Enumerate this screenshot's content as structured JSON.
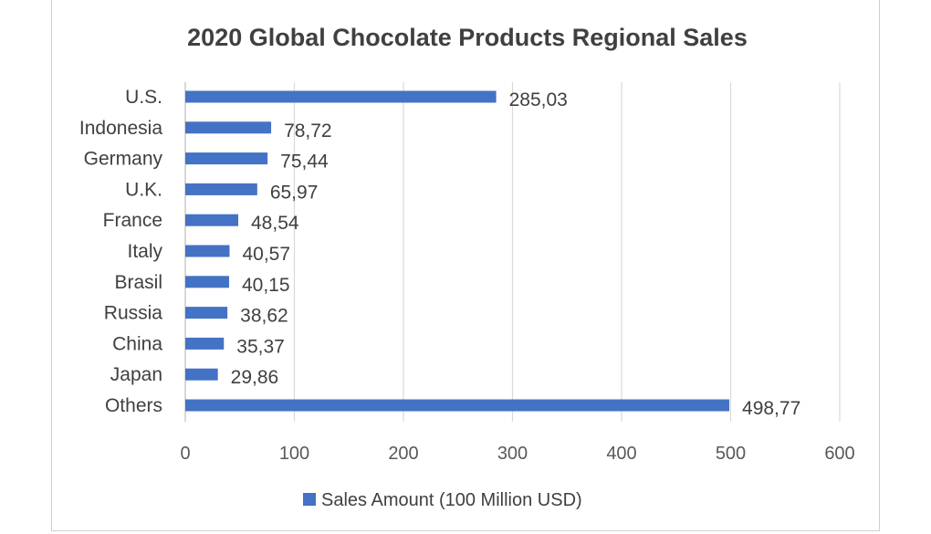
{
  "chart_data": {
    "type": "bar",
    "orientation": "horizontal",
    "title": "2020 Global Chocolate Products Regional Sales",
    "categories": [
      "U.S.",
      "Indonesia",
      "Germany",
      "U.K.",
      "France",
      "Italy",
      "Brasil",
      "Russia",
      "China",
      "Japan",
      "Others"
    ],
    "series": [
      {
        "name": "Sales Amount (100 Million USD)",
        "values": [
          285.03,
          78.72,
          75.44,
          65.97,
          48.54,
          40.57,
          40.15,
          38.62,
          35.37,
          29.86,
          498.77
        ],
        "labels": [
          "285,03",
          "78,72",
          "75,44",
          "65,97",
          "48,54",
          "40,57",
          "40,15",
          "38,62",
          "35,37",
          "29,86",
          "498,77"
        ]
      }
    ],
    "xlim": [
      0,
      600
    ],
    "x_ticks": [
      "0",
      "100",
      "200",
      "300",
      "400",
      "500",
      "600"
    ],
    "xlabel": "",
    "ylabel": "",
    "grid": "vertical",
    "legend": "bottom",
    "colors": {
      "bar": "#4472C4",
      "text": "#404040",
      "grid": "#D9D9D9"
    }
  }
}
